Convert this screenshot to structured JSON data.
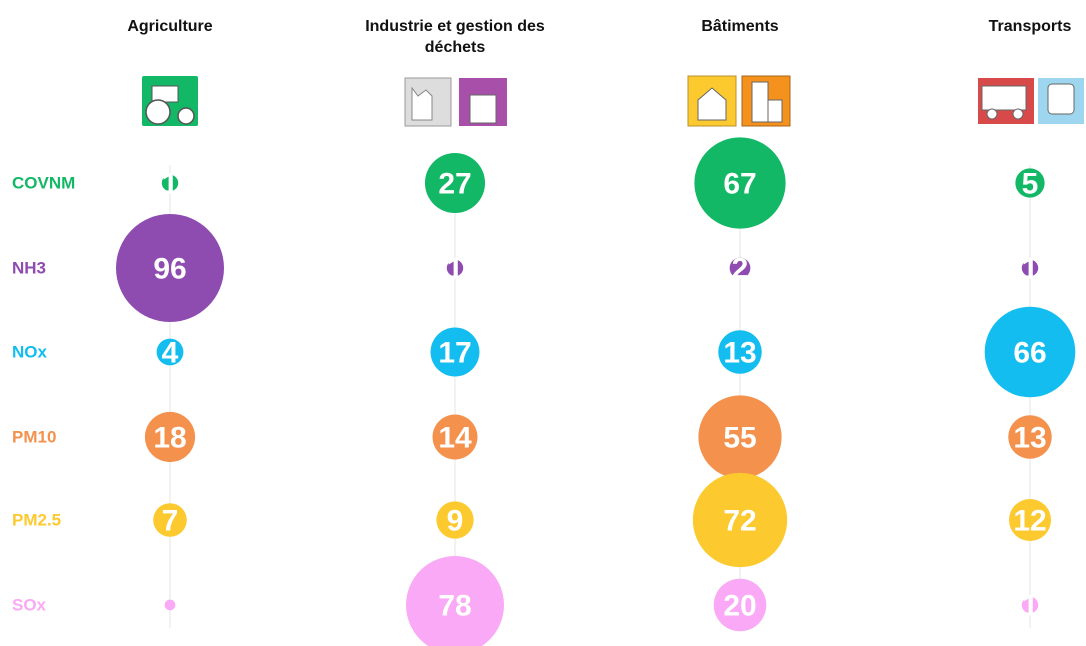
{
  "chart_data": {
    "type": "bubble-matrix",
    "categories": [
      "Agriculture",
      "Industrie et gestion des déchets",
      "Bâtiments",
      "Transports"
    ],
    "series": [
      {
        "name": "COVNM",
        "color": "#13b866",
        "values": [
          1,
          27,
          67,
          5
        ]
      },
      {
        "name": "NH3",
        "color": "#8e4bb0",
        "values": [
          96,
          1,
          2,
          1
        ]
      },
      {
        "name": "NOx",
        "color": "#13bdf0",
        "values": [
          4,
          17,
          13,
          66
        ]
      },
      {
        "name": "PM10",
        "color": "#f4914d",
        "values": [
          18,
          14,
          55,
          13
        ]
      },
      {
        "name": "PM2.5",
        "color": "#fcc92e",
        "values": [
          7,
          9,
          72,
          12
        ]
      },
      {
        "name": "SOx",
        "color": "#f9a9f5",
        "values": [
          0.2,
          78,
          20,
          1
        ],
        "value_labels": [
          null,
          "78",
          "20",
          "1"
        ]
      }
    ]
  }
}
